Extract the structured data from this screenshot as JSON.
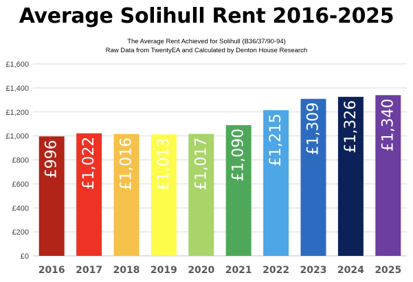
{
  "chart_data": {
    "type": "bar",
    "title": "Average Solihull Rent 2016-2025",
    "subtitle": [
      "The Average Rent Achieved for Solihull (B36/37/90-94)",
      "Raw Data from TwentyEA and Calculated by Denton House Research"
    ],
    "categories": [
      "2016",
      "2017",
      "2018",
      "2019",
      "2020",
      "2021",
      "2022",
      "2023",
      "2024",
      "2025"
    ],
    "values": [
      996,
      1022,
      1016,
      1013,
      1017,
      1090,
      1215,
      1309,
      1326,
      1340
    ],
    "data_labels": [
      "£996",
      "£1,022",
      "£1,016",
      "£1,013",
      "£1,017",
      "£1,090",
      "£1,215",
      "£1,309",
      "£1,326",
      "£1,340"
    ],
    "bar_colors": [
      "#b22418",
      "#ee3325",
      "#f6c14a",
      "#fdfc4a",
      "#a8d46a",
      "#4fa85a",
      "#4da6e6",
      "#2c6bc0",
      "#0d2159",
      "#6b3ea0"
    ],
    "label_colors": [
      "#ffffff",
      "#ffffff",
      "#ffffff",
      "#ffffff",
      "#ffffff",
      "#ffffff",
      "#ffffff",
      "#ffffff",
      "#ffffff",
      "#ffffff"
    ],
    "y_ticks": [
      0,
      200,
      400,
      600,
      800,
      1000,
      1200,
      1400,
      1600
    ],
    "y_tick_labels": [
      "£0",
      "£200",
      "£400",
      "£600",
      "£800",
      "£1,000",
      "£1,200",
      "£1,400",
      "£1,600"
    ],
    "ylim": [
      0,
      1600
    ],
    "xlabel": "",
    "ylabel": "",
    "grid": true,
    "legend": "none"
  }
}
